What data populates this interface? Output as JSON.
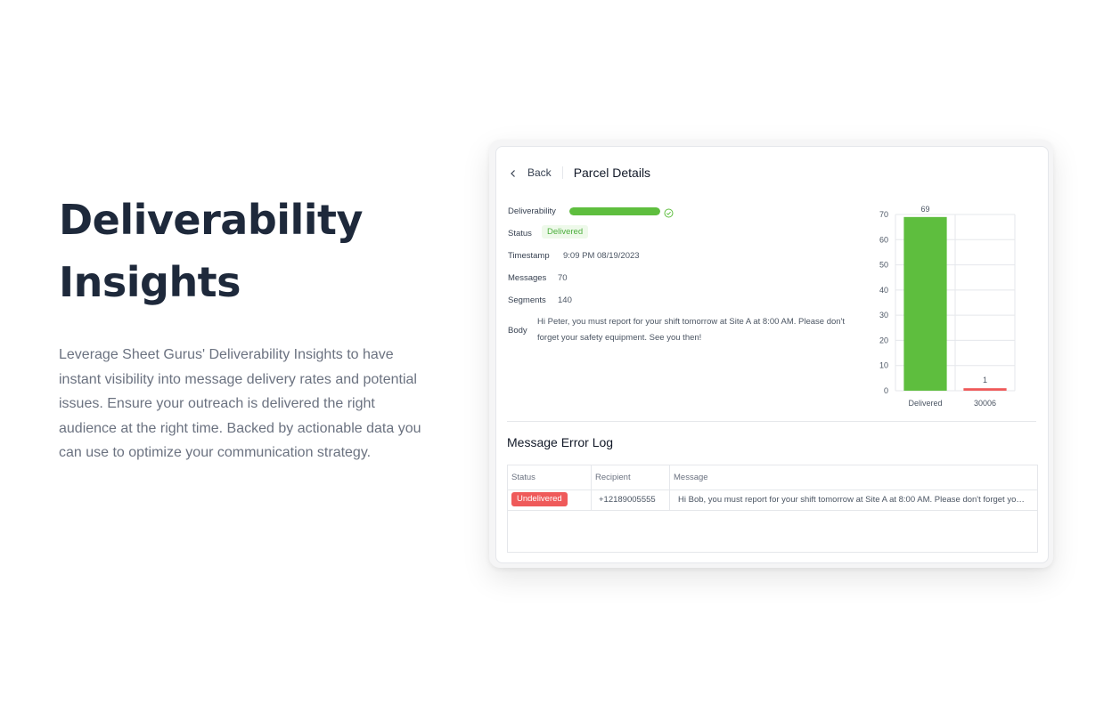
{
  "hero": {
    "title": "Deliverability Insights",
    "description": "Leverage Sheet Gurus' Deliverability Insights to have instant visibility into message delivery rates and potential issues. Ensure your outreach is delivered the right audience at the right time. Backed by actionable data you can use to optimize your communication strategy."
  },
  "header": {
    "back_label": "Back",
    "title": "Parcel Details"
  },
  "details": {
    "deliverability_label": "Deliverability",
    "deliverability_fraction": 1,
    "status_label": "Status",
    "status_value": "Delivered",
    "timestamp_label": "Timestamp",
    "timestamp_value": "9:09 PM 08/19/2023",
    "messages_label": "Messages",
    "messages_value": "70",
    "segments_label": "Segments",
    "segments_value": "140",
    "body_label": "Body",
    "body_value": "Hi Peter, you must report for your shift tomorrow at Site A at 8:00 AM. Please don't forget your safety equipment. See you then!"
  },
  "colors": {
    "success": "#5ebe3e",
    "error": "#ef5a5a"
  },
  "chart_data": {
    "type": "bar",
    "categories": [
      "Delivered",
      "30006"
    ],
    "values": [
      69,
      1
    ],
    "colors": [
      "#5ebe3e",
      "#ef5a5a"
    ],
    "ylim": [
      0,
      70
    ],
    "yticks": [
      0,
      10,
      20,
      30,
      40,
      50,
      60,
      70
    ],
    "grid": true
  },
  "error_log": {
    "title": "Message Error Log",
    "columns": [
      "Status",
      "Recipient",
      "Message"
    ],
    "rows": [
      {
        "status": "Undelivered",
        "recipient": "+12189005555",
        "message": "Hi Bob, you must report for your shift tomorrow at Site A at 8:00 AM. Please don't forget your safety equipment. See you then!"
      }
    ]
  }
}
